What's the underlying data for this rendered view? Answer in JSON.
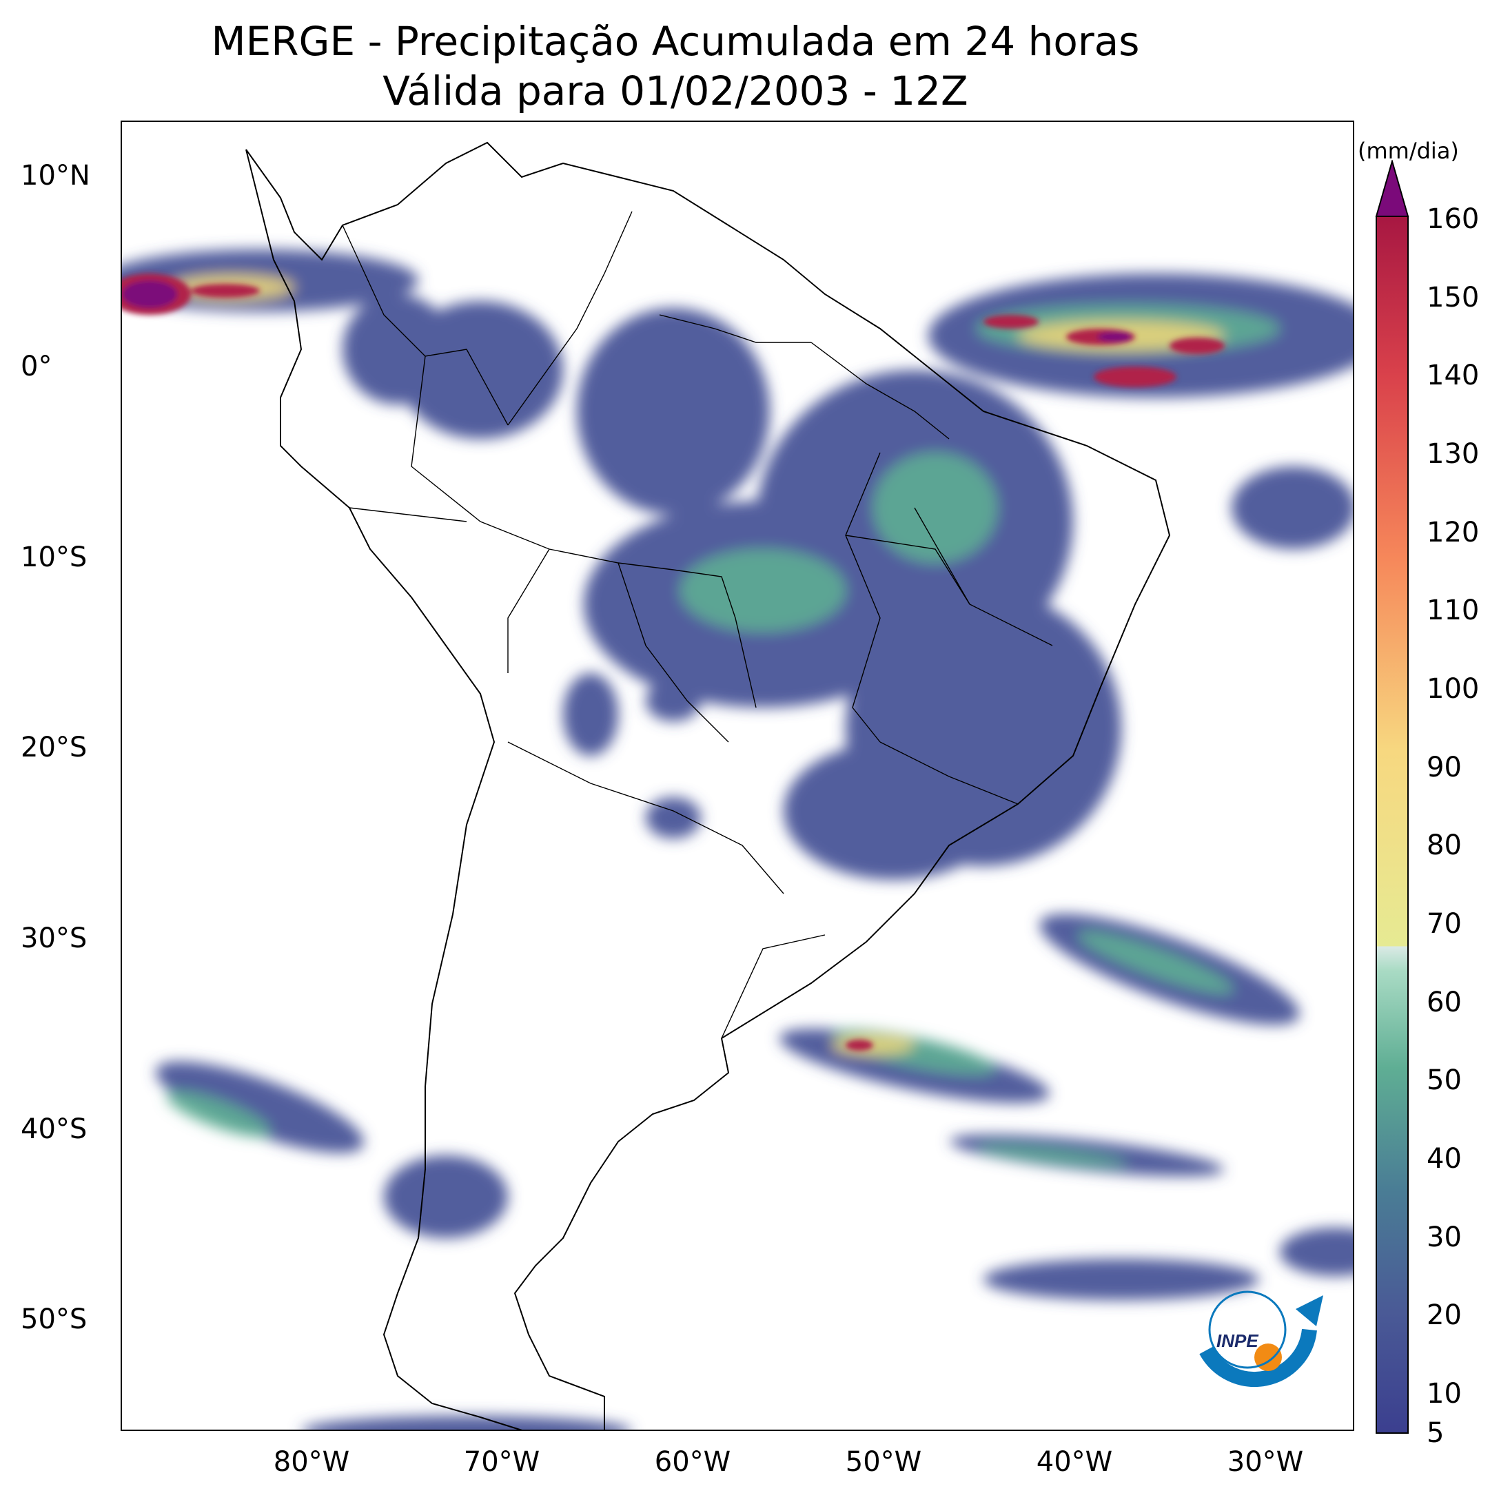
{
  "title": {
    "line1": "MERGE - Precipitação Acumulada em 24 horas",
    "line2": "Válida para 01/02/2003 - 12Z"
  },
  "map": {
    "region": "South America",
    "lon_range": [
      -90,
      -25
    ],
    "lat_range": [
      -56,
      13
    ],
    "lat_ticks": [
      "10°N",
      "0°",
      "10°S",
      "20°S",
      "30°S",
      "40°S",
      "50°S"
    ],
    "lon_ticks": [
      "80°W",
      "70°W",
      "60°W",
      "50°W",
      "40°W",
      "30°W"
    ]
  },
  "colorbar": {
    "unit": "(mm/dia)",
    "tick_labels": [
      "5",
      "10",
      "20",
      "30",
      "40",
      "50",
      "60",
      "70",
      "80",
      "90",
      "100",
      "110",
      "120",
      "130",
      "140",
      "150",
      "160"
    ],
    "extend": "max",
    "over_color": "#7b0a7a"
  },
  "logo": {
    "text": "INPE"
  }
}
